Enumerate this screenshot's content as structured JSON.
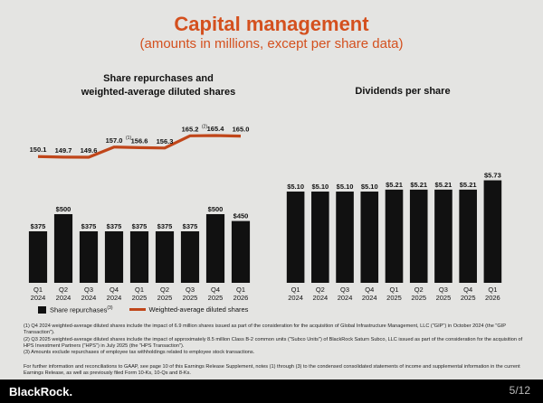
{
  "header": {
    "title": "Capital management",
    "subtitle": "(amounts in millions, except per share data)"
  },
  "left_chart": {
    "title_line1": "Share repurchases and",
    "title_line2": "weighted-average diluted shares",
    "legend_bars": "Share repurchases",
    "legend_bars_sup": "(3)",
    "legend_line": "Weighted-average diluted shares"
  },
  "right_chart": {
    "title": "Dividends per share"
  },
  "chart_data": [
    {
      "type": "bar",
      "categories": [
        "Q1 2024",
        "Q2 2024",
        "Q3 2024",
        "Q4 2024",
        "Q1 2025",
        "Q2 2025",
        "Q3 2025",
        "Q4 2025",
        "Q1 2026"
      ],
      "tick_line1": [
        "Q1",
        "Q2",
        "Q3",
        "Q4",
        "Q1",
        "Q2",
        "Q3",
        "Q4",
        "Q1"
      ],
      "tick_line2": [
        "2024",
        "2024",
        "2024",
        "2024",
        "2025",
        "2025",
        "2025",
        "2025",
        "2026"
      ],
      "series": [
        {
          "name": "Share repurchases",
          "values": [
            375,
            500,
            375,
            375,
            375,
            375,
            375,
            500,
            450
          ],
          "labels": [
            "$375",
            "$500",
            "$375",
            "$375",
            "$375",
            "$375",
            "$375",
            "$500",
            "$450"
          ],
          "color": "#111111"
        },
        {
          "name": "Weighted-average diluted shares",
          "type": "line",
          "values": [
            150.1,
            149.7,
            149.6,
            157.0,
            156.6,
            156.3,
            165.2,
            165.4,
            165.0
          ],
          "labels": [
            "150.1",
            "149.7",
            "149.6",
            "157.0",
            "156.6",
            "156.3",
            "165.2",
            "165.4",
            "165.0"
          ],
          "notes": [
            "",
            "",
            "",
            "(1)",
            "",
            "",
            "(2)",
            "",
            ""
          ],
          "color": "#c0461a"
        }
      ],
      "title": "Share repurchases and weighted-average diluted shares"
    },
    {
      "type": "bar",
      "categories": [
        "Q1 2024",
        "Q2 2024",
        "Q3 2024",
        "Q4 2024",
        "Q1 2025",
        "Q2 2025",
        "Q3 2025",
        "Q4 2025",
        "Q1 2026"
      ],
      "tick_line1": [
        "Q1",
        "Q2",
        "Q3",
        "Q4",
        "Q1",
        "Q2",
        "Q3",
        "Q4",
        "Q1"
      ],
      "tick_line2": [
        "2024",
        "2024",
        "2024",
        "2024",
        "2025",
        "2025",
        "2025",
        "2025",
        "2026"
      ],
      "values": [
        5.1,
        5.1,
        5.1,
        5.1,
        5.21,
        5.21,
        5.21,
        5.21,
        5.73
      ],
      "labels": [
        "$5.10",
        "$5.10",
        "$5.10",
        "$5.10",
        "$5.21",
        "$5.21",
        "$5.21",
        "$5.21",
        "$5.73"
      ],
      "title": "Dividends per share",
      "color": "#111111"
    }
  ],
  "footnotes": [
    "(1)  Q4 2024 weighted-average diluted shares include the impact of 6.9 million shares issued as part of the consideration for the acquisition of Global Infrastructure Management, LLC (\"GIP\") in October 2024 (the \"GIP Transaction\").",
    "(2)  Q3 2025 weighted-average diluted shares include the impact of approximately 8.5 million Class B-2 common units (\"Subco Units\") of BlackRock Saturn Subco, LLC issued as part of the consideration for the acquisition of HPS Investment Partners (\"HPS\") in July 2025 (the \"HPS Transaction\").",
    "(3)  Amounts exclude repurchases of employee tax withholdings related to employee stock transactions."
  ],
  "further_info": "For further information and reconciliations to GAAP, see page 10 of this Earnings Release Supplement, notes (1) through (3) to the condensed consolidated statements of income and supplemental information in the current Earnings Release, as well as previously filed Form 10-Ks, 10-Qs and 8-Ks.",
  "footer": {
    "logo": "BlackRock.",
    "page": "5/12"
  }
}
